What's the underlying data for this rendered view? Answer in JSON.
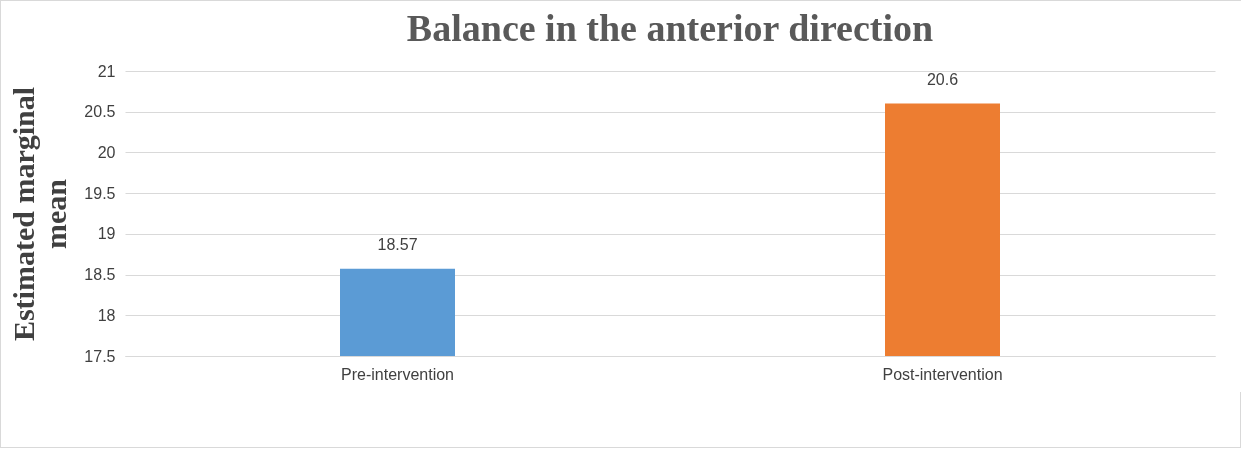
{
  "chart_data": {
    "type": "bar",
    "title": "Balance in the anterior direction",
    "ylabel": "Estimated marginal mean",
    "categories": [
      "Pre-intervention",
      "Post-intervention"
    ],
    "values": [
      18.57,
      20.6
    ],
    "colors": [
      "#5b9bd5",
      "#ed7d31"
    ],
    "ylim": [
      17.5,
      21
    ],
    "yticks": [
      17.5,
      18,
      18.5,
      19,
      19.5,
      20,
      20.5,
      21
    ],
    "grid": "y",
    "data_labels": true,
    "legend": false
  }
}
